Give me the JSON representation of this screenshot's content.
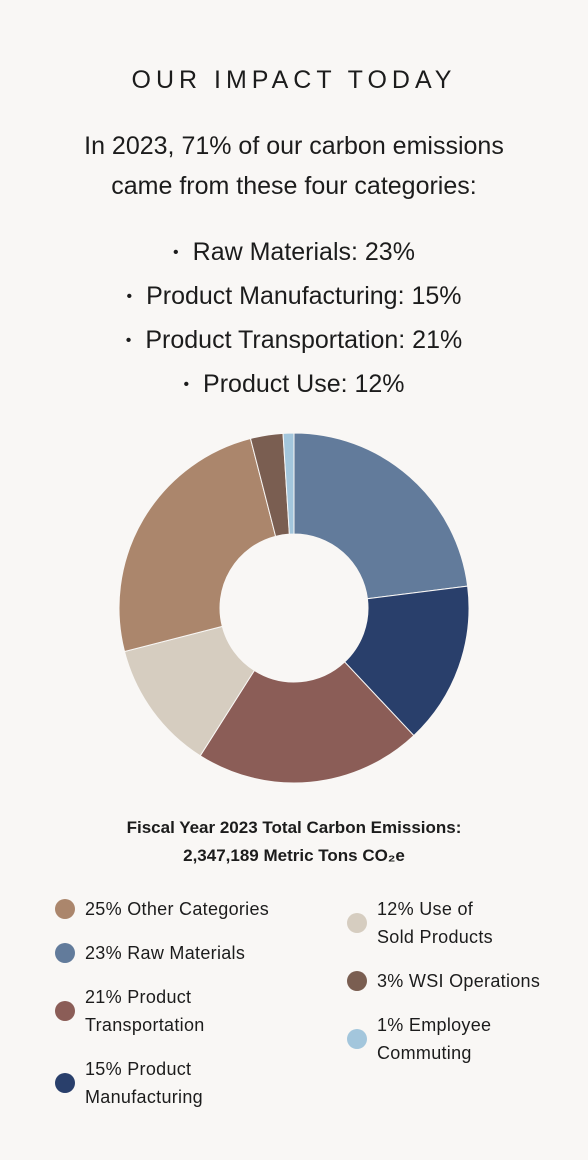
{
  "heading": "OUR IMPACT TODAY",
  "intro_line1": "In 2023, 71% of our carbon emissions",
  "intro_line2": "came from these four categories:",
  "bullets": [
    "Raw Materials: 23%",
    "Product Manufacturing: 15%",
    "Product Transportation: 21%",
    "Product Use: 12%"
  ],
  "total_line1": "Fiscal Year 2023 Total Carbon Emissions:",
  "total_line2": "2,347,189 Metric Tons CO₂e",
  "chart_data": {
    "type": "pie",
    "donut": true,
    "unit": "%",
    "slices": [
      {
        "label": "23% Raw Materials",
        "value": 23,
        "color": "#627b9b"
      },
      {
        "label": "15% Product Manufacturing",
        "value": 15,
        "color": "#293f6b"
      },
      {
        "label": "21% Product Transportation",
        "value": 21,
        "color": "#8b5d57"
      },
      {
        "label": "12% Use of Sold Products",
        "value": 12,
        "color": "#d6cdc0"
      },
      {
        "label": "25% Other Categories",
        "value": 25,
        "color": "#ab866c"
      },
      {
        "label": "3% WSI Operations",
        "value": 3,
        "color": "#7a5e51"
      },
      {
        "label": "1% Employee Commuting",
        "value": 1,
        "color": "#a3c6dc"
      }
    ]
  },
  "legend_left": [
    {
      "label": "25% Other Categories",
      "color": "#ab866c"
    },
    {
      "label": "23% Raw Materials",
      "color": "#627b9b"
    },
    {
      "label": "21% Product\nTransportation",
      "color": "#8b5d57"
    },
    {
      "label": "15% Product\nManufacturing",
      "color": "#293f6b"
    }
  ],
  "legend_right": [
    {
      "label": "12% Use of\nSold Products",
      "color": "#d6cdc0"
    },
    {
      "label": "3% WSI Operations",
      "color": "#7a5e51"
    },
    {
      "label": "1% Employee\nCommuting",
      "color": "#a3c6dc"
    }
  ]
}
